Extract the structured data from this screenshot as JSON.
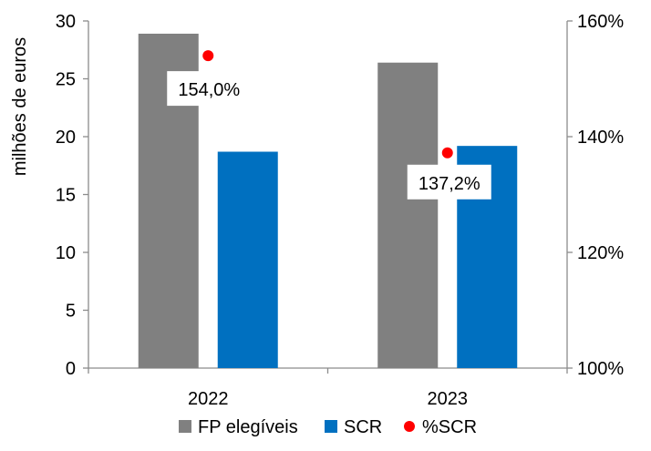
{
  "chart_data": {
    "type": "bar",
    "categories": [
      "2022",
      "2023"
    ],
    "series": [
      {
        "name": "FP elegíveis",
        "values": [
          28.9,
          26.4
        ],
        "color": "#808080",
        "axis": "left"
      },
      {
        "name": "SCR",
        "values": [
          18.7,
          19.2
        ],
        "color": "#0070C0",
        "axis": "left"
      }
    ],
    "point_series": {
      "name": "%SCR",
      "values": [
        154.0,
        137.2
      ],
      "labels": [
        "154,0%",
        "137,2%"
      ],
      "color": "#FF0000",
      "axis": "right"
    },
    "ylabel": "milhões de euros",
    "ylim": [
      0,
      30
    ],
    "yticks": [
      "0",
      "5",
      "10",
      "15",
      "20",
      "25",
      "30"
    ],
    "y2lim": [
      100,
      160
    ],
    "y2ticks": [
      "100%",
      "120%",
      "140%",
      "160%"
    ],
    "legend": {
      "position": "bottom",
      "entries": [
        "FP elegíveis",
        "SCR",
        "%SCR"
      ]
    },
    "grid": false
  }
}
